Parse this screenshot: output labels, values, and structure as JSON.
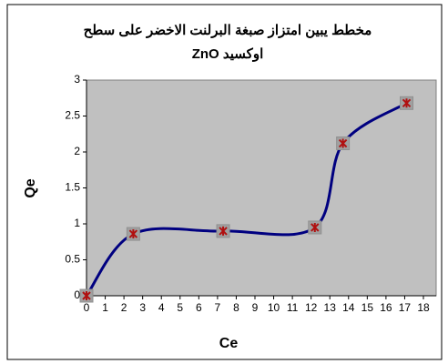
{
  "chart_data": {
    "type": "scatter-smooth",
    "title": [
      "مخطط يبين امتزاز صبغة البرلنت الاخضر على سطح",
      "اوكسيد ZnO"
    ],
    "x_label": "Ce",
    "y_label": "Qe",
    "x": [
      0,
      2.5,
      7.3,
      12.2,
      13.7,
      17.1
    ],
    "values": [
      0,
      0.86,
      0.9,
      0.95,
      2.12,
      2.68
    ],
    "color": "#000080",
    "marker_color": "#b01010",
    "plot_background": "#c0c0c0",
    "xlim": [
      0,
      18
    ],
    "xticks": [
      0,
      1,
      2,
      3,
      4,
      5,
      6,
      7,
      8,
      9,
      10,
      11,
      12,
      13,
      14,
      15,
      16,
      17,
      18
    ],
    "ylim": [
      0,
      3
    ],
    "yticks": [
      0,
      0.5,
      1,
      1.5,
      2,
      2.5,
      3
    ],
    "grid": false
  }
}
